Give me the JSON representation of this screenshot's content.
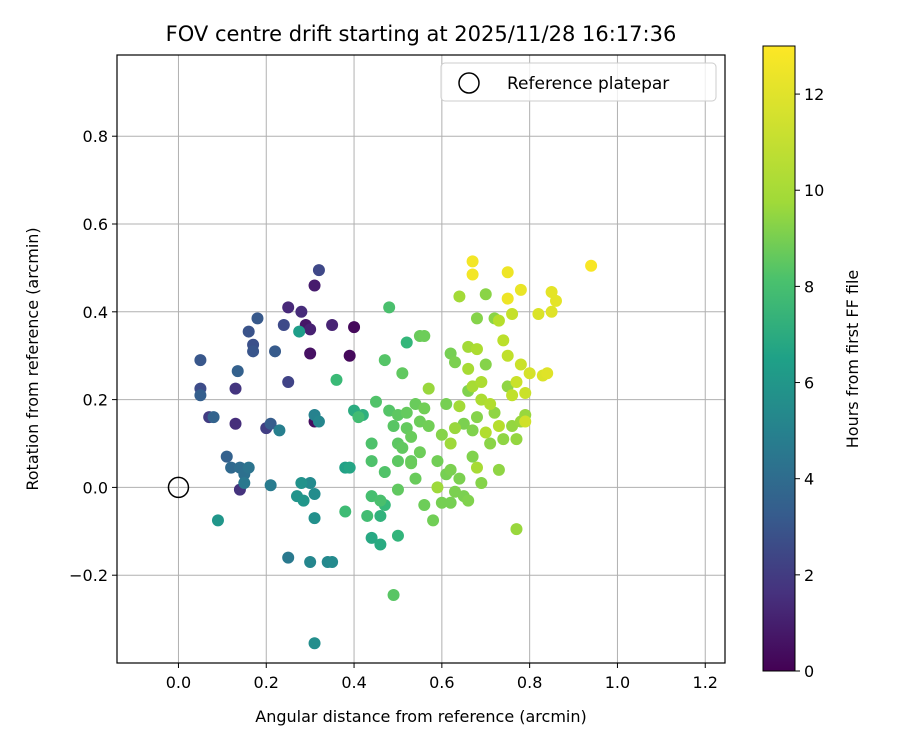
{
  "chart_data": {
    "type": "scatter",
    "title": "FOV centre drift starting at 2025/11/28 16:17:36",
    "xlabel": "Angular distance from reference (arcmin)",
    "ylabel": "Rotation from reference (arcmin)",
    "xlim": [
      -0.14,
      1.245
    ],
    "ylim": [
      -0.4,
      0.985
    ],
    "xticks": [
      0.0,
      0.2,
      0.4,
      0.6,
      0.8,
      1.0,
      1.2
    ],
    "xtick_labels": [
      "0.0",
      "0.2",
      "0.4",
      "0.6",
      "0.8",
      "1.0",
      "1.2"
    ],
    "yticks": [
      -0.2,
      0.0,
      0.2,
      0.4,
      0.6,
      0.8
    ],
    "ytick_labels": [
      "−0.2",
      "0.0",
      "0.2",
      "0.4",
      "0.6",
      "0.8"
    ],
    "grid": true,
    "legend": {
      "position": "top-right",
      "entries": [
        "Reference platepar"
      ]
    },
    "reference_point": {
      "x": 0.0,
      "y": 0.0,
      "label": "Reference platepar"
    },
    "colorbar": {
      "label": "Hours from first FF file",
      "range": [
        0,
        13
      ],
      "ticks": [
        0,
        2,
        4,
        6,
        8,
        10,
        12
      ],
      "tick_labels": [
        "0",
        "2",
        "4",
        "6",
        "8",
        "10",
        "12"
      ],
      "colormap": "viridis"
    },
    "points": [
      [
        0.4,
        0.365,
        0.3
      ],
      [
        0.39,
        0.3,
        0.3
      ],
      [
        0.31,
        0.15,
        0.4
      ],
      [
        0.3,
        0.305,
        0.6
      ],
      [
        0.29,
        0.37,
        0.8
      ],
      [
        0.31,
        0.46,
        1.0
      ],
      [
        0.3,
        0.36,
        1.2
      ],
      [
        0.35,
        0.37,
        1.3
      ],
      [
        0.25,
        0.41,
        1.5
      ],
      [
        0.28,
        0.4,
        1.6
      ],
      [
        0.13,
        0.145,
        1.7
      ],
      [
        0.14,
        -0.005,
        1.9
      ],
      [
        0.13,
        0.225,
        2.0
      ],
      [
        0.07,
        0.16,
        2.3
      ],
      [
        0.2,
        0.135,
        2.4
      ],
      [
        0.25,
        0.24,
        2.6
      ],
      [
        0.32,
        0.495,
        2.8
      ],
      [
        0.24,
        0.37,
        2.9
      ],
      [
        0.05,
        0.225,
        3.0
      ],
      [
        0.17,
        0.325,
        3.2
      ],
      [
        0.16,
        0.355,
        3.3
      ],
      [
        0.17,
        0.31,
        3.4
      ],
      [
        0.05,
        0.29,
        3.5
      ],
      [
        0.18,
        0.385,
        3.6
      ],
      [
        0.22,
        0.31,
        3.7
      ],
      [
        0.21,
        0.145,
        3.8
      ],
      [
        0.05,
        0.21,
        3.9
      ],
      [
        0.11,
        0.07,
        4.0
      ],
      [
        0.135,
        0.265,
        4.0
      ],
      [
        0.08,
        0.16,
        4.1
      ],
      [
        0.12,
        0.045,
        4.4
      ],
      [
        0.14,
        0.045,
        4.6
      ],
      [
        0.15,
        0.03,
        4.8
      ],
      [
        0.16,
        0.045,
        5.0
      ],
      [
        0.15,
        0.01,
        5.2
      ],
      [
        0.25,
        -0.16,
        5.3
      ],
      [
        0.21,
        0.005,
        5.4
      ],
      [
        0.23,
        0.13,
        5.6
      ],
      [
        0.31,
        0.165,
        5.8
      ],
      [
        0.32,
        0.15,
        6.0
      ],
      [
        0.3,
        -0.17,
        6.0
      ],
      [
        0.34,
        -0.17,
        6.1
      ],
      [
        0.35,
        -0.17,
        6.2
      ],
      [
        0.3,
        0.01,
        6.2
      ],
      [
        0.31,
        -0.015,
        6.3
      ],
      [
        0.31,
        -0.355,
        6.4
      ],
      [
        0.31,
        -0.07,
        6.5
      ],
      [
        0.28,
        0.01,
        6.6
      ],
      [
        0.27,
        -0.02,
        6.7
      ],
      [
        0.285,
        -0.03,
        6.8
      ],
      [
        0.09,
        -0.075,
        6.8
      ],
      [
        0.275,
        0.355,
        7.2
      ],
      [
        0.38,
        0.045,
        7.4
      ],
      [
        0.39,
        0.045,
        7.6
      ],
      [
        0.44,
        -0.115,
        7.8
      ],
      [
        0.46,
        -0.13,
        7.9
      ],
      [
        0.4,
        0.175,
        8.0
      ],
      [
        0.42,
        0.165,
        8.2
      ],
      [
        0.46,
        -0.065,
        8.4
      ],
      [
        0.5,
        -0.11,
        8.5
      ],
      [
        0.52,
        0.33,
        8.6
      ],
      [
        0.47,
        -0.04,
        8.7
      ],
      [
        0.36,
        0.245,
        8.8
      ],
      [
        0.38,
        -0.055,
        8.9
      ],
      [
        0.41,
        0.16,
        9.0
      ],
      [
        0.43,
        -0.065,
        9.0
      ],
      [
        0.44,
        -0.02,
        9.1
      ],
      [
        0.46,
        -0.03,
        9.2
      ],
      [
        0.48,
        0.41,
        9.2
      ],
      [
        0.44,
        0.06,
        9.3
      ],
      [
        0.44,
        0.1,
        9.3
      ],
      [
        0.45,
        0.195,
        9.4
      ],
      [
        0.47,
        0.035,
        9.4
      ],
      [
        0.47,
        0.29,
        9.5
      ],
      [
        0.48,
        0.175,
        9.5
      ],
      [
        0.49,
        0.14,
        9.6
      ],
      [
        0.49,
        -0.245,
        9.6
      ],
      [
        0.5,
        0.1,
        9.7
      ],
      [
        0.5,
        0.06,
        9.7
      ],
      [
        0.5,
        0.165,
        9.7
      ],
      [
        0.5,
        -0.005,
        9.8
      ],
      [
        0.51,
        0.09,
        9.8
      ],
      [
        0.51,
        0.26,
        9.8
      ],
      [
        0.52,
        0.17,
        9.9
      ],
      [
        0.52,
        0.135,
        9.9
      ],
      [
        0.53,
        0.06,
        9.9
      ],
      [
        0.53,
        0.115,
        10.0
      ],
      [
        0.53,
        0.055,
        10.0
      ],
      [
        0.54,
        0.02,
        10.0
      ],
      [
        0.54,
        0.19,
        10.0
      ],
      [
        0.55,
        0.345,
        10.0
      ],
      [
        0.55,
        0.15,
        10.1
      ],
      [
        0.55,
        0.08,
        10.1
      ],
      [
        0.56,
        0.345,
        10.1
      ],
      [
        0.56,
        -0.04,
        10.1
      ],
      [
        0.56,
        0.18,
        10.2
      ],
      [
        0.57,
        0.14,
        10.2
      ],
      [
        0.58,
        -0.075,
        10.2
      ],
      [
        0.59,
        0.06,
        10.2
      ],
      [
        0.6,
        -0.035,
        10.3
      ],
      [
        0.61,
        0.03,
        10.3
      ],
      [
        0.61,
        0.19,
        10.3
      ],
      [
        0.62,
        0.305,
        10.3
      ],
      [
        0.62,
        -0.035,
        10.3
      ],
      [
        0.62,
        0.04,
        10.4
      ],
      [
        0.63,
        0.285,
        10.4
      ],
      [
        0.63,
        -0.01,
        10.4
      ],
      [
        0.64,
        0.02,
        10.4
      ],
      [
        0.65,
        0.145,
        10.4
      ],
      [
        0.65,
        -0.02,
        10.4
      ],
      [
        0.66,
        -0.03,
        10.5
      ],
      [
        0.66,
        0.22,
        10.5
      ],
      [
        0.67,
        0.13,
        10.5
      ],
      [
        0.67,
        0.07,
        10.5
      ],
      [
        0.68,
        0.16,
        10.6
      ],
      [
        0.68,
        0.385,
        10.6
      ],
      [
        0.69,
        0.01,
        10.6
      ],
      [
        0.7,
        0.28,
        10.6
      ],
      [
        0.7,
        0.44,
        10.7
      ],
      [
        0.71,
        0.1,
        10.7
      ],
      [
        0.72,
        0.385,
        10.7
      ],
      [
        0.72,
        0.17,
        10.8
      ],
      [
        0.73,
        0.04,
        10.8
      ],
      [
        0.74,
        0.11,
        10.8
      ],
      [
        0.75,
        0.23,
        10.8
      ],
      [
        0.76,
        0.14,
        10.9
      ],
      [
        0.77,
        0.11,
        10.9
      ],
      [
        0.77,
        -0.095,
        11.0
      ],
      [
        0.78,
        0.15,
        11.0
      ],
      [
        0.79,
        0.165,
        11.0
      ],
      [
        0.64,
        0.435,
        11.2
      ],
      [
        0.66,
        0.32,
        11.2
      ],
      [
        0.67,
        0.23,
        11.3
      ],
      [
        0.68,
        0.045,
        11.3
      ],
      [
        0.69,
        0.2,
        11.4
      ],
      [
        0.7,
        0.125,
        11.5
      ],
      [
        0.71,
        0.19,
        11.5
      ],
      [
        0.73,
        0.38,
        11.6
      ],
      [
        0.74,
        0.335,
        11.7
      ],
      [
        0.75,
        0.3,
        11.8
      ],
      [
        0.76,
        0.395,
        11.9
      ],
      [
        0.77,
        0.24,
        12.0
      ],
      [
        0.78,
        0.28,
        12.0
      ],
      [
        0.79,
        0.15,
        12.1
      ],
      [
        0.8,
        0.26,
        12.2
      ],
      [
        0.82,
        0.395,
        12.3
      ],
      [
        0.83,
        0.255,
        12.3
      ],
      [
        0.84,
        0.26,
        12.4
      ],
      [
        0.85,
        0.4,
        12.4
      ],
      [
        0.85,
        0.445,
        12.5
      ],
      [
        0.86,
        0.425,
        12.5
      ],
      [
        0.78,
        0.45,
        12.6
      ],
      [
        0.75,
        0.49,
        12.7
      ],
      [
        0.75,
        0.43,
        12.7
      ],
      [
        0.67,
        0.515,
        12.8
      ],
      [
        0.67,
        0.485,
        12.8
      ],
      [
        0.94,
        0.505,
        12.9
      ],
      [
        0.63,
        0.135,
        11.0
      ],
      [
        0.6,
        0.12,
        10.6
      ],
      [
        0.57,
        0.225,
        11.0
      ],
      [
        0.62,
        0.1,
        11.1
      ],
      [
        0.64,
        0.185,
        11.2
      ],
      [
        0.66,
        0.27,
        11.3
      ],
      [
        0.68,
        0.315,
        11.4
      ],
      [
        0.59,
        0.0,
        11.1
      ],
      [
        0.73,
        0.14,
        11.6
      ],
      [
        0.76,
        0.21,
        11.8
      ],
      [
        0.79,
        0.215,
        12.0
      ],
      [
        0.69,
        0.24,
        11.4
      ]
    ]
  }
}
